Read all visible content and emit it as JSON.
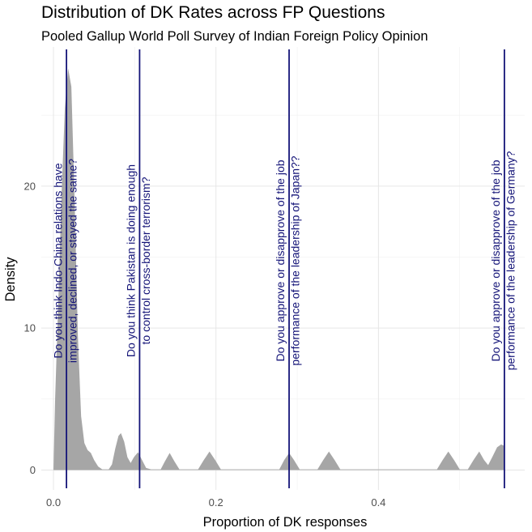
{
  "chart_data": {
    "type": "area",
    "title": "Distribution of DK Rates across FP Questions",
    "subtitle": "Pooled Gallup World Poll Survey of Indian Foreign Policy Opinion",
    "xlabel": "Proportion of DK responses",
    "ylabel": "Density",
    "xlim": [
      -0.015,
      0.58
    ],
    "ylim": [
      -1.4,
      29.8
    ],
    "x_ticks": [
      0.0,
      0.2,
      0.4
    ],
    "x_tick_labels": [
      "0.0",
      "0.2",
      "0.4"
    ],
    "y_ticks": [
      0,
      10,
      20
    ],
    "y_tick_labels": [
      "0",
      "10",
      "20"
    ],
    "grid": true,
    "fill_color": "#a6a6a6",
    "line_color": "#141478",
    "density_points": [
      [
        0.0,
        0.0
      ],
      [
        0.002,
        5.0
      ],
      [
        0.006,
        12.0
      ],
      [
        0.01,
        19.5
      ],
      [
        0.014,
        25.5
      ],
      [
        0.018,
        28.3
      ],
      [
        0.022,
        27.0
      ],
      [
        0.026,
        19.0
      ],
      [
        0.03,
        9.5
      ],
      [
        0.034,
        3.8
      ],
      [
        0.038,
        1.9
      ],
      [
        0.042,
        1.4
      ],
      [
        0.046,
        1.2
      ],
      [
        0.05,
        0.7
      ],
      [
        0.055,
        0.25
      ],
      [
        0.06,
        0.05
      ],
      [
        0.068,
        0.05
      ],
      [
        0.072,
        0.4
      ],
      [
        0.076,
        1.5
      ],
      [
        0.08,
        2.4
      ],
      [
        0.083,
        2.6
      ],
      [
        0.087,
        2.0
      ],
      [
        0.091,
        0.9
      ],
      [
        0.095,
        0.5
      ],
      [
        0.099,
        0.9
      ],
      [
        0.104,
        1.25
      ],
      [
        0.109,
        0.7
      ],
      [
        0.114,
        0.15
      ],
      [
        0.12,
        0.05
      ],
      [
        0.132,
        0.05
      ],
      [
        0.137,
        0.6
      ],
      [
        0.143,
        1.2
      ],
      [
        0.149,
        0.6
      ],
      [
        0.155,
        0.05
      ],
      [
        0.178,
        0.05
      ],
      [
        0.185,
        0.7
      ],
      [
        0.192,
        1.3
      ],
      [
        0.199,
        0.7
      ],
      [
        0.206,
        0.05
      ],
      [
        0.278,
        0.05
      ],
      [
        0.284,
        0.7
      ],
      [
        0.29,
        1.2
      ],
      [
        0.296,
        0.7
      ],
      [
        0.303,
        0.05
      ],
      [
        0.325,
        0.05
      ],
      [
        0.332,
        0.7
      ],
      [
        0.339,
        1.3
      ],
      [
        0.346,
        0.7
      ],
      [
        0.353,
        0.05
      ],
      [
        0.472,
        0.05
      ],
      [
        0.479,
        0.7
      ],
      [
        0.486,
        1.3
      ],
      [
        0.493,
        0.7
      ],
      [
        0.5,
        0.05
      ],
      [
        0.51,
        0.05
      ],
      [
        0.517,
        0.7
      ],
      [
        0.524,
        1.3
      ],
      [
        0.53,
        0.7
      ],
      [
        0.535,
        0.35
      ],
      [
        0.54,
        0.9
      ],
      [
        0.546,
        1.6
      ],
      [
        0.551,
        1.8
      ],
      [
        0.555,
        1.7
      ],
      [
        0.555,
        0.0
      ]
    ],
    "annotations": [
      {
        "x": 0.016,
        "lines": [
          "Do you think Indo-China relations have",
          "improved, declined, or stayed the same?"
        ]
      },
      {
        "x": 0.106,
        "lines": [
          "Do you think Pakistan is doing enough",
          "to control cross-border terrorism?"
        ]
      },
      {
        "x": 0.29,
        "lines": [
          "Do you approve or disapprove of the job",
          "performance of the leadership of Japan??"
        ]
      },
      {
        "x": 0.555,
        "lines": [
          "Do you approve or disapprove of the job",
          "performance of the leadership of Germany?"
        ]
      }
    ]
  }
}
